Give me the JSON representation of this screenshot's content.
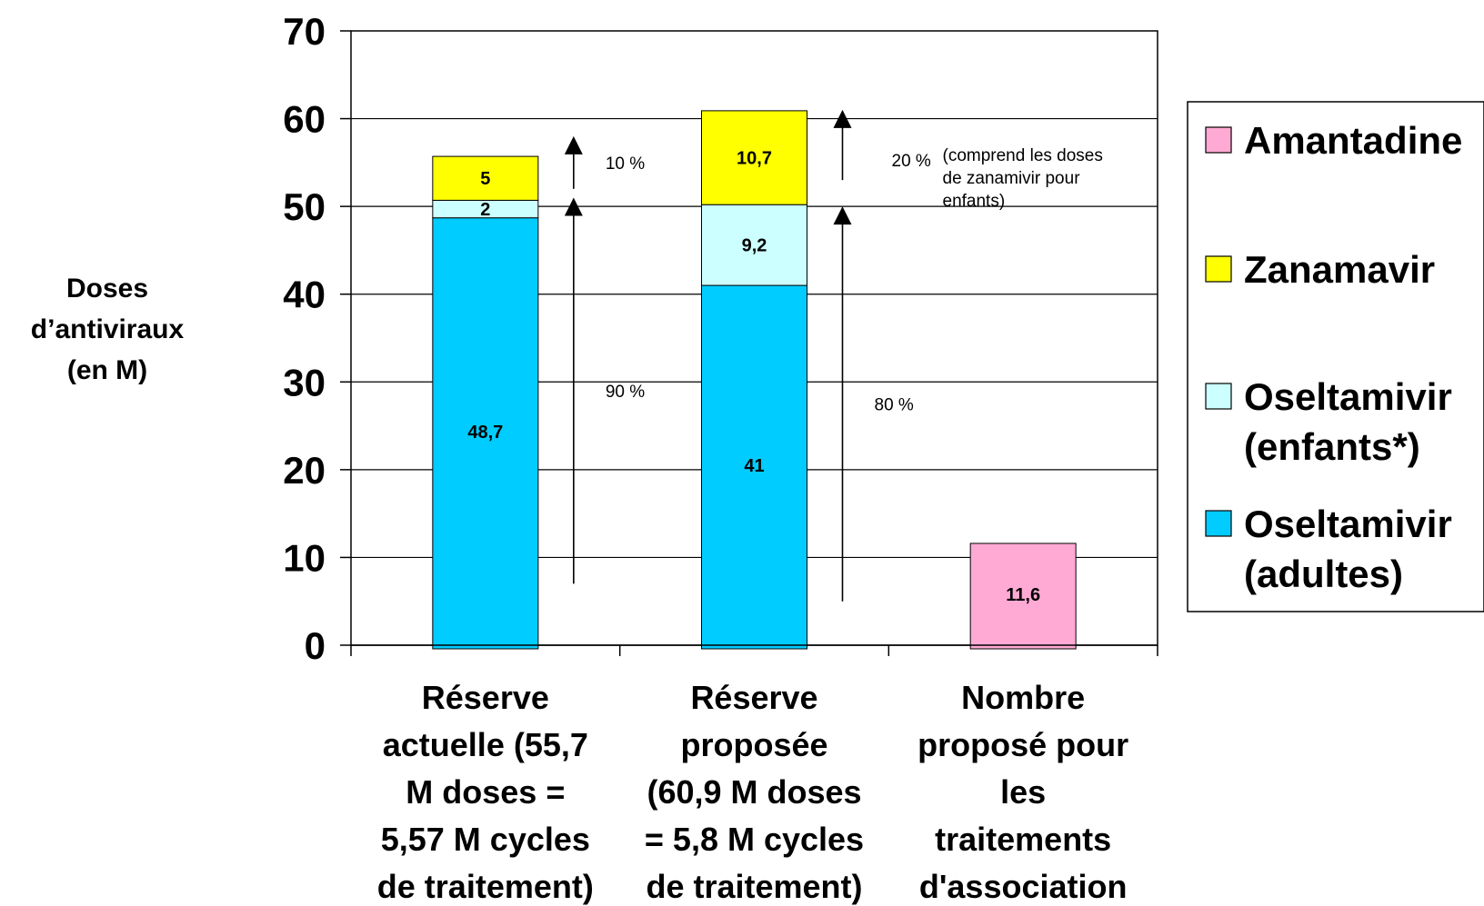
{
  "chart_data": {
    "type": "bar",
    "stacked": true,
    "ylabel_lines": [
      "Doses",
      "d’antiviraux",
      "(en M)"
    ],
    "ylim": [
      0,
      70
    ],
    "yticks": [
      0,
      10,
      20,
      30,
      40,
      50,
      60,
      70
    ],
    "grid": true,
    "legend_position": "right",
    "categories": [
      [
        "Réserve",
        "actuelle (55,7",
        "M doses =",
        "5,57 M cycles",
        "de traitement)"
      ],
      [
        "Réserve",
        "proposée",
        "(60,9 M doses",
        "= 5,8 M cycles",
        "de traitement)"
      ],
      [
        "Nombre",
        "proposé pour",
        "les",
        "traitements",
        "d'association"
      ]
    ],
    "series": [
      {
        "name": "Oseltamivir (adultes)",
        "legend_lines": [
          "Oseltamivir",
          "(adultes)"
        ],
        "color": "#00CCFF",
        "values": [
          48.7,
          41,
          0
        ],
        "labels": [
          "48,7",
          "41",
          ""
        ]
      },
      {
        "name": "Oseltamivir (enfants*)",
        "legend_lines": [
          "Oseltamivir",
          "(enfants*)"
        ],
        "color": "#CCFFFF",
        "values": [
          2,
          9.2,
          0
        ],
        "labels": [
          "2",
          "9,2",
          ""
        ]
      },
      {
        "name": "Zanamavir",
        "legend_lines": [
          "Zanamavir"
        ],
        "color": "#FFFF00",
        "values": [
          5,
          10.7,
          0
        ],
        "labels": [
          "5",
          "10,7",
          ""
        ]
      },
      {
        "name": "Amantadine",
        "legend_lines": [
          "Amantadine"
        ],
        "color": "#FFAAD4",
        "values": [
          0,
          0,
          11.6
        ],
        "labels": [
          "",
          "",
          "11,6"
        ]
      }
    ],
    "legend_order": [
      "Amantadine",
      "Zanamavir",
      "Oseltamivir (enfants*)",
      "Oseltamivir (adultes)"
    ],
    "annotations": [
      {
        "category": 0,
        "from": 7,
        "to": 51,
        "label": "90 %"
      },
      {
        "category": 0,
        "from": 52,
        "to": 58,
        "label": "10 %"
      },
      {
        "category": 1,
        "from": 5,
        "to": 50,
        "label": "80 %"
      },
      {
        "category": 1,
        "from": 53,
        "to": 61,
        "label": "20 %",
        "note_lines": [
          "(comprend les doses",
          "de zanamivir pour",
          "enfants)"
        ]
      }
    ]
  }
}
